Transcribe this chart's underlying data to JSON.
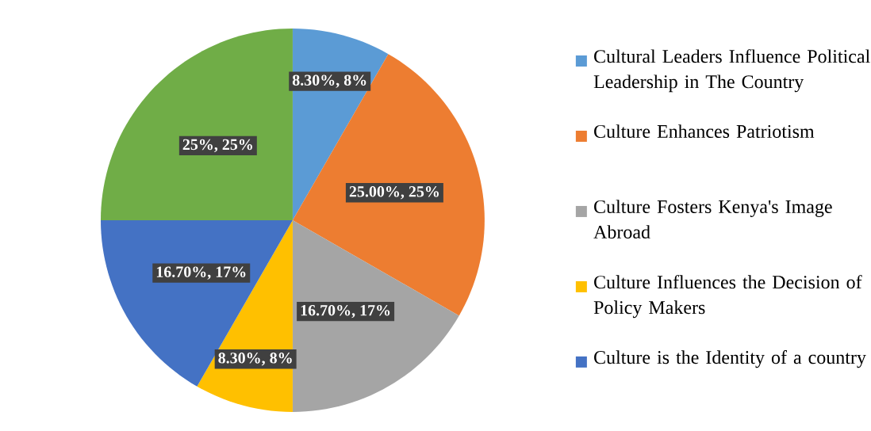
{
  "chart_data": {
    "type": "pie",
    "categories": [
      "Cultural Leaders Influence Political Leadership in The Country",
      "Culture Enhances Patriotism",
      "Culture Fosters Kenya's Image Abroad",
      "Culture Influences the Decision of Policy Makers",
      "Culture is the Identity of a country",
      null
    ],
    "values": [
      8.3,
      25,
      16.7,
      8.3,
      16.7,
      25
    ],
    "colors": [
      "#5b9bd5",
      "#ed7d31",
      "#a5a5a5",
      "#ffc000",
      "#4472c4",
      "#70ad47"
    ],
    "value_labels": [
      "8.30%, 8%",
      "25.00%, 25%",
      "16.70%, 17%",
      "8.30%, 8%",
      "16.70%, 17%",
      "25%, 25%"
    ],
    "legend": "right"
  }
}
